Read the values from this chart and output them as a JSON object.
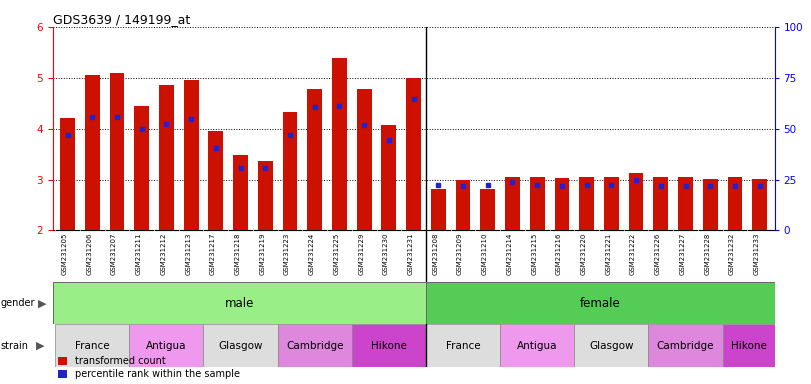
{
  "title": "GDS3639 / 149199_at",
  "samples": [
    "GSM231205",
    "GSM231206",
    "GSM231207",
    "GSM231211",
    "GSM231212",
    "GSM231213",
    "GSM231217",
    "GSM231218",
    "GSM231219",
    "GSM231223",
    "GSM231224",
    "GSM231225",
    "GSM231229",
    "GSM231230",
    "GSM231231",
    "GSM231208",
    "GSM231209",
    "GSM231210",
    "GSM231214",
    "GSM231215",
    "GSM231216",
    "GSM231220",
    "GSM231221",
    "GSM231222",
    "GSM231226",
    "GSM231227",
    "GSM231228",
    "GSM231232",
    "GSM231233"
  ],
  "transformed_count": [
    4.2,
    5.05,
    5.1,
    4.45,
    4.85,
    4.95,
    3.95,
    3.48,
    3.37,
    4.32,
    4.78,
    5.38,
    4.78,
    4.08,
    5.0,
    2.82,
    3.0,
    2.82,
    3.05,
    3.05,
    3.03,
    3.05,
    3.05,
    3.12,
    3.05,
    3.05,
    3.02,
    3.05,
    3.02
  ],
  "percentile_rank": [
    3.88,
    4.22,
    4.22,
    4.0,
    4.1,
    4.18,
    3.62,
    3.22,
    3.22,
    3.88,
    4.42,
    4.44,
    4.08,
    3.77,
    4.58,
    2.9,
    2.88,
    2.9,
    2.95,
    2.9,
    2.88,
    2.9,
    2.9,
    3.0,
    2.88,
    2.88,
    2.88,
    2.88,
    2.88
  ],
  "n_male": 15,
  "n_female": 14,
  "ylim_left": [
    2,
    6
  ],
  "ylim_right": [
    0,
    100
  ],
  "yticks_left": [
    2,
    3,
    4,
    5,
    6
  ],
  "yticks_right": [
    0,
    25,
    50,
    75,
    100
  ],
  "bar_color": "#cc1100",
  "dot_color": "#2222cc",
  "gender_male_color": "#99ee88",
  "gender_female_color": "#55cc55",
  "xtick_bg_color": "#cccccc",
  "strain_colors_male": [
    "#dddddd",
    "#ee99dd",
    "#dddddd",
    "#ee99dd",
    "#dd44cc"
  ],
  "strain_colors_female": [
    "#dddddd",
    "#ee99dd",
    "#dddddd",
    "#ee99dd",
    "#dd44cc"
  ],
  "strain_boundaries_male": [
    [
      0,
      3,
      "France"
    ],
    [
      3,
      6,
      "Antigua"
    ],
    [
      6,
      9,
      "Glasgow"
    ],
    [
      9,
      12,
      "Cambridge"
    ],
    [
      12,
      15,
      "Hikone"
    ]
  ],
  "strain_boundaries_female": [
    [
      15,
      18,
      "France"
    ],
    [
      18,
      21,
      "Antigua"
    ],
    [
      21,
      24,
      "Glasgow"
    ],
    [
      24,
      27,
      "Cambridge"
    ],
    [
      27,
      29,
      "Hikone"
    ]
  ],
  "background_color": "#ffffff",
  "legend_labels": [
    "transformed count",
    "percentile rank within the sample"
  ]
}
